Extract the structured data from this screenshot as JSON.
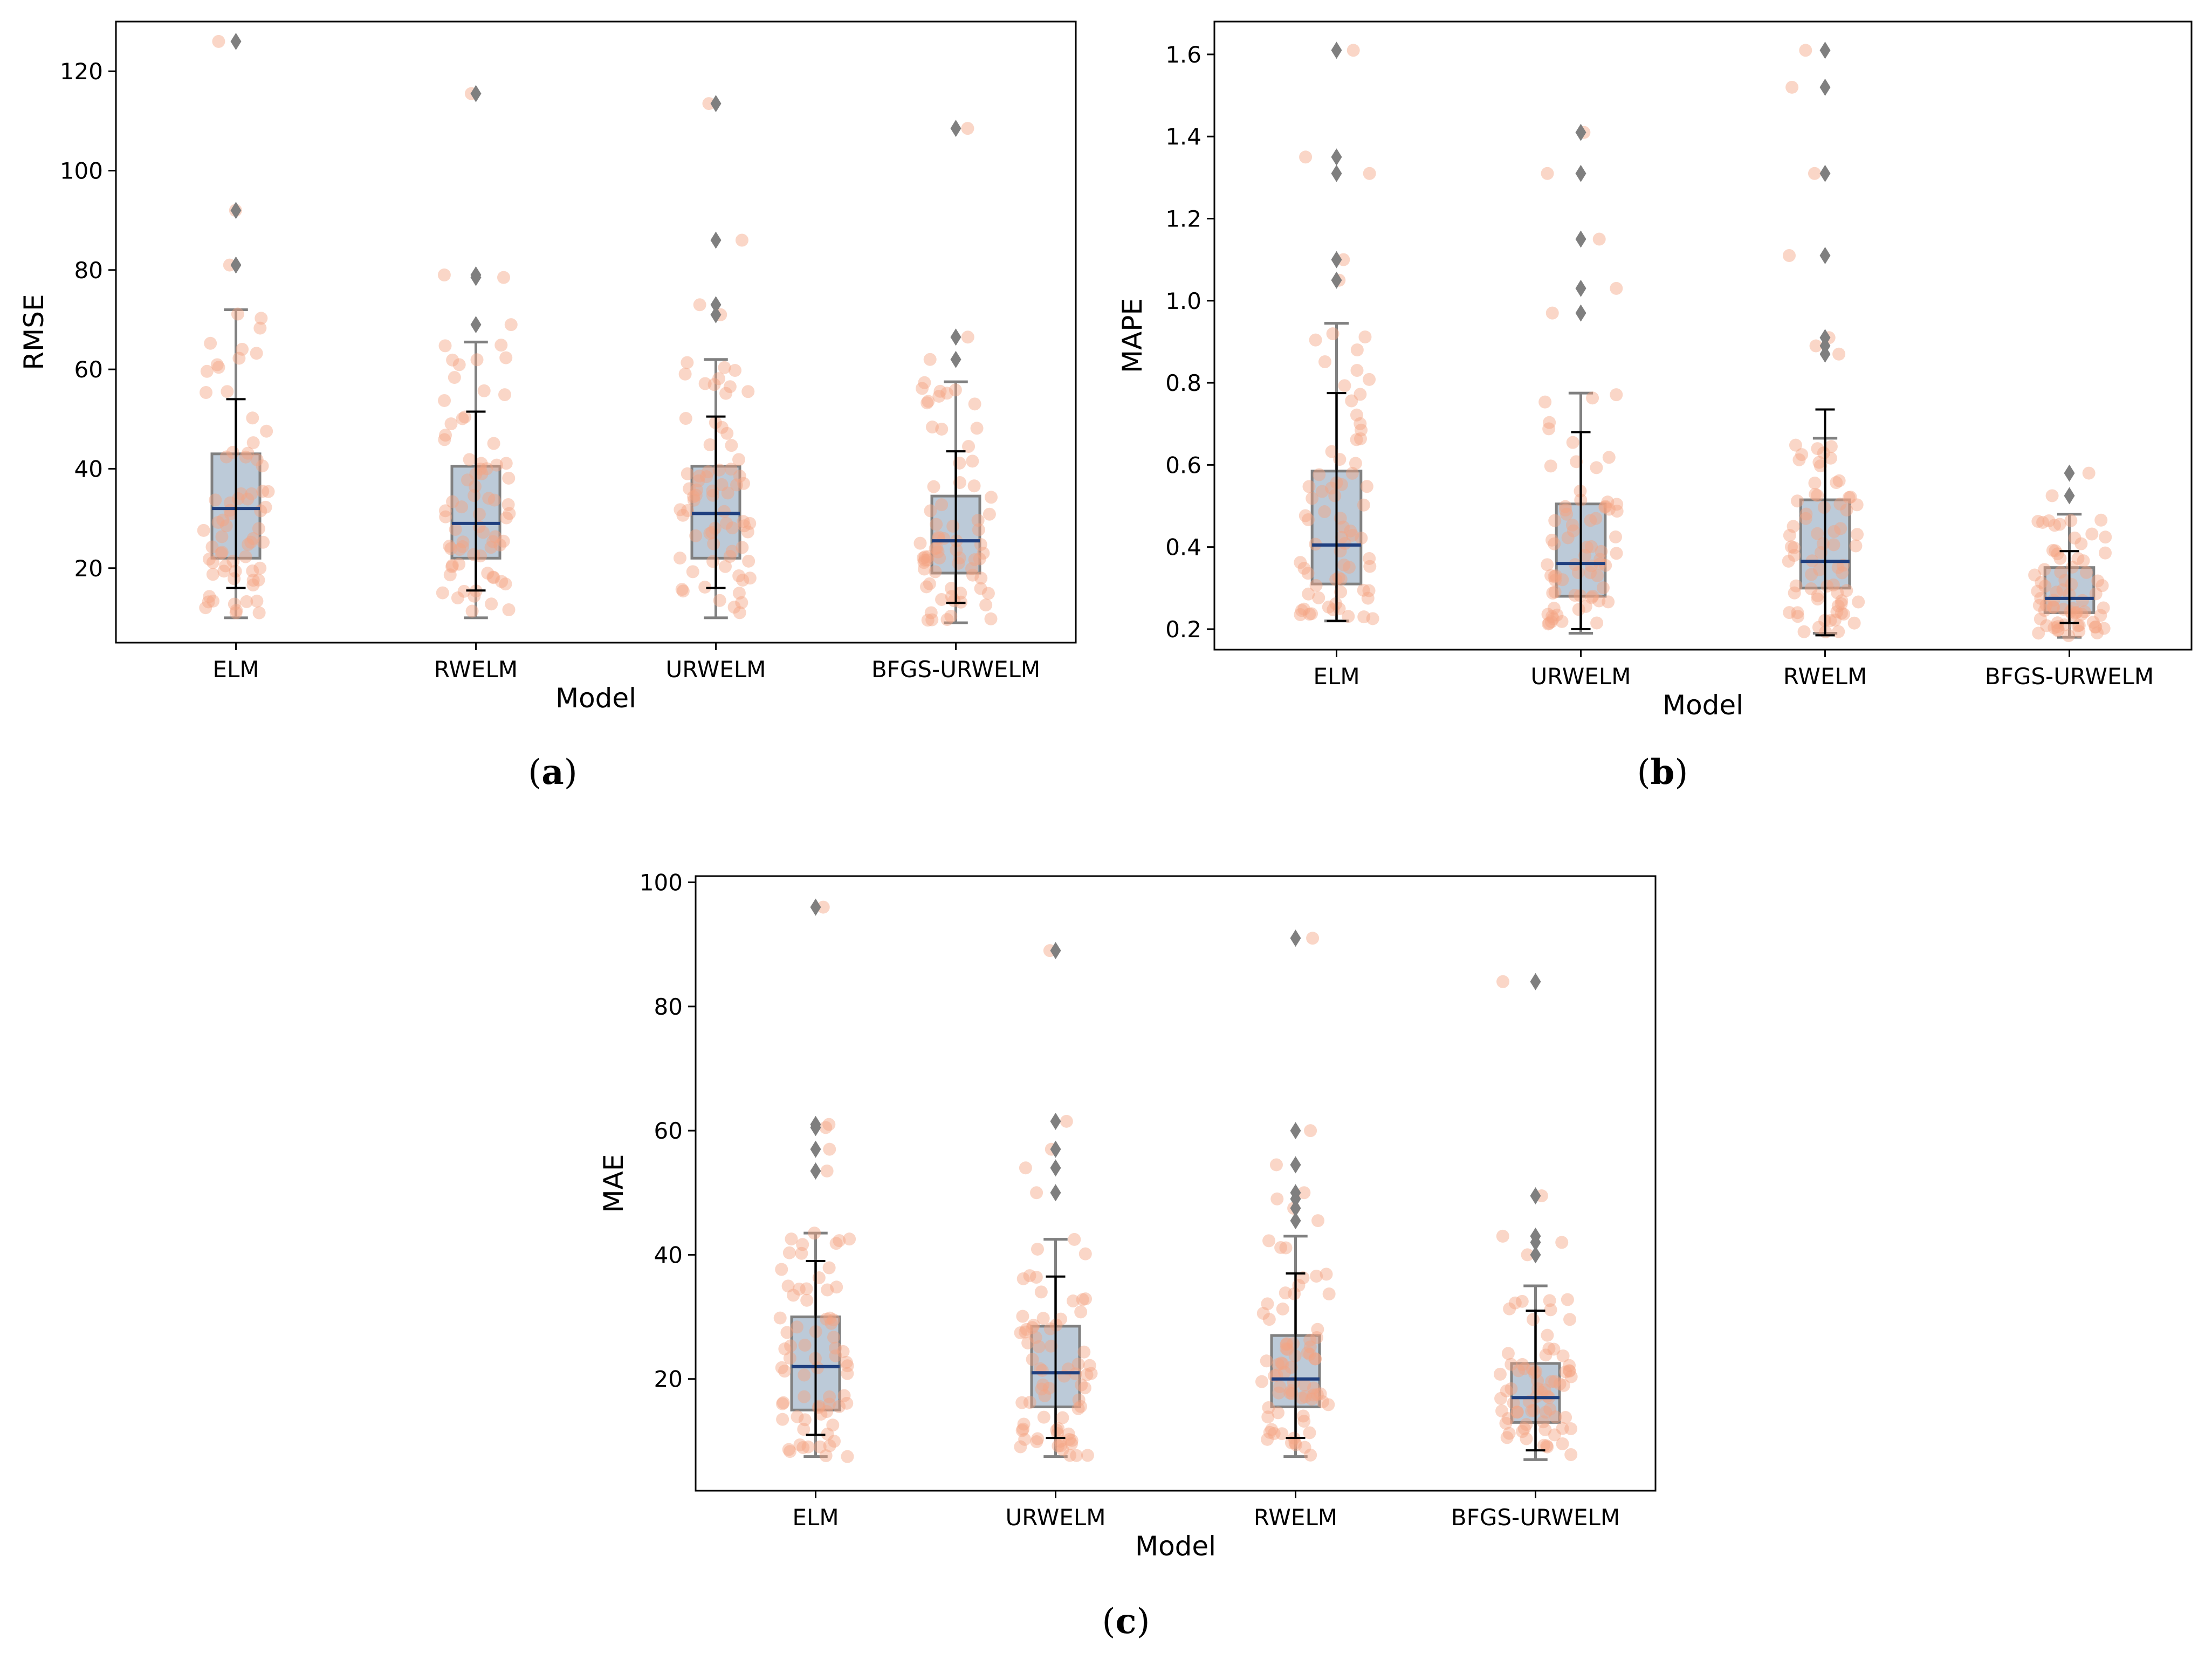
{
  "captions": {
    "a": "a",
    "b": "b",
    "c": "c"
  },
  "colors": {
    "box_fill": "#bccad8",
    "box_edge": "#808080",
    "median": "#1f3f7f",
    "points": "#f4a582",
    "outlier": "#7f7f7f",
    "errorbar": "#000000"
  },
  "chart_data": [
    {
      "id": "a",
      "type": "box",
      "xlabel": "Model",
      "ylabel": "RMSE",
      "ylim": [
        5,
        130
      ],
      "yticks": [
        20,
        40,
        60,
        80,
        100,
        120
      ],
      "categories": [
        "ELM",
        "RWELM",
        "URWELM",
        "BFGS-URWELM"
      ],
      "boxes": [
        {
          "min": 10,
          "q1": 22,
          "median": 32,
          "q3": 43,
          "max": 72,
          "outliers": [
            81,
            92,
            126
          ],
          "err_low": 16,
          "err_high": 54
        },
        {
          "min": 10,
          "q1": 22,
          "median": 29,
          "q3": 40.5,
          "max": 65.5,
          "outliers": [
            69,
            78.5,
            79,
            115.5
          ],
          "err_low": 15.5,
          "err_high": 51.5
        },
        {
          "min": 10,
          "q1": 22,
          "median": 31,
          "q3": 40.5,
          "max": 62,
          "outliers": [
            71,
            73,
            86,
            113.5
          ],
          "err_low": 16,
          "err_high": 50.5
        },
        {
          "min": 9,
          "q1": 19,
          "median": 25.5,
          "q3": 34.5,
          "max": 57.5,
          "outliers": [
            62,
            66.5,
            108.5
          ],
          "err_low": 13,
          "err_high": 43.5
        }
      ]
    },
    {
      "id": "b",
      "type": "box",
      "xlabel": "Model",
      "ylabel": "MAPE",
      "ylim": [
        0.15,
        1.68
      ],
      "yticks": [
        0.2,
        0.4,
        0.6,
        0.8,
        1.0,
        1.2,
        1.4,
        1.6
      ],
      "categories": [
        "ELM",
        "URWELM",
        "RWELM",
        "BFGS-URWELM"
      ],
      "boxes": [
        {
          "min": 0.22,
          "q1": 0.31,
          "median": 0.405,
          "q3": 0.585,
          "max": 0.945,
          "outliers": [
            1.05,
            1.1,
            1.31,
            1.35,
            1.61
          ],
          "err_low": 0.22,
          "err_high": 0.775
        },
        {
          "min": 0.19,
          "q1": 0.28,
          "median": 0.36,
          "q3": 0.505,
          "max": 0.775,
          "outliers": [
            0.97,
            1.03,
            1.15,
            1.31,
            1.41
          ],
          "err_low": 0.2,
          "err_high": 0.68
        },
        {
          "min": 0.19,
          "q1": 0.3,
          "median": 0.365,
          "q3": 0.515,
          "max": 0.665,
          "outliers": [
            0.87,
            0.89,
            0.91,
            1.11,
            1.31,
            1.52,
            1.61
          ],
          "err_low": 0.185,
          "err_high": 0.735
        },
        {
          "min": 0.18,
          "q1": 0.24,
          "median": 0.275,
          "q3": 0.35,
          "max": 0.48,
          "outliers": [
            0.525,
            0.58
          ],
          "err_low": 0.215,
          "err_high": 0.39
        }
      ]
    },
    {
      "id": "c",
      "type": "box",
      "xlabel": "Model",
      "ylabel": "MAE",
      "ylim": [
        2,
        101
      ],
      "yticks": [
        20,
        40,
        60,
        80,
        100
      ],
      "categories": [
        "ELM",
        "URWELM",
        "RWELM",
        "BFGS-URWELM"
      ],
      "boxes": [
        {
          "min": 7.5,
          "q1": 15,
          "median": 22,
          "q3": 30,
          "max": 43.5,
          "outliers": [
            53.5,
            57,
            60.5,
            61,
            96
          ],
          "err_low": 11,
          "err_high": 39
        },
        {
          "min": 7.5,
          "q1": 15.5,
          "median": 21,
          "q3": 28.5,
          "max": 42.5,
          "outliers": [
            50,
            54,
            57,
            61.5,
            89
          ],
          "err_low": 10.5,
          "err_high": 36.5
        },
        {
          "min": 7.5,
          "q1": 15.5,
          "median": 20,
          "q3": 27,
          "max": 43,
          "outliers": [
            45.5,
            47.5,
            49,
            50,
            54.5,
            60,
            91
          ],
          "err_low": 10.5,
          "err_high": 37
        },
        {
          "min": 7,
          "q1": 13,
          "median": 17,
          "q3": 22.5,
          "max": 35,
          "outliers": [
            40,
            42,
            43,
            49.5,
            84
          ],
          "err_low": 8.5,
          "err_high": 31
        }
      ]
    }
  ]
}
